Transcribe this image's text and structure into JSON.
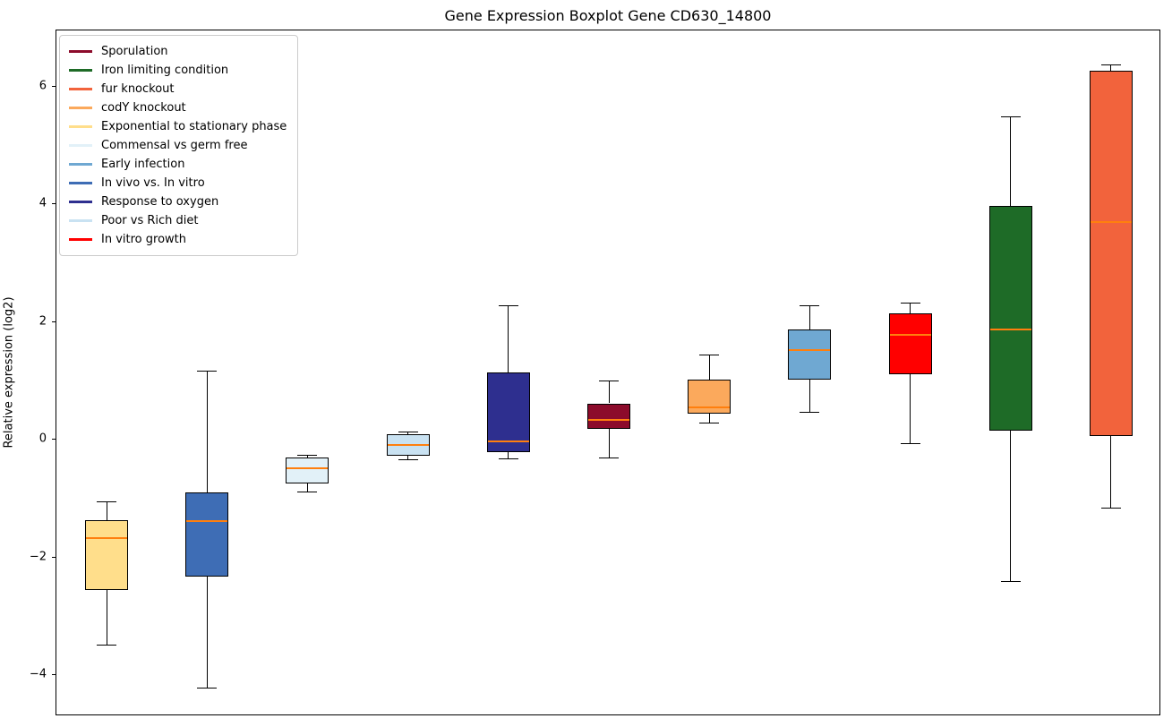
{
  "title": "Gene Expression Boxplot Gene CD630_14800",
  "ylabel": "Relative expression (log2)",
  "chart_data": {
    "type": "boxplot",
    "title": "Gene Expression Boxplot Gene CD630_14800",
    "xlabel": "",
    "ylabel": "Relative expression (log2)",
    "ylim": [
      -4.7,
      6.96
    ],
    "grid": false,
    "legend_position": "upper left",
    "median_color": "#ff7f0e",
    "yticks": [
      {
        "value": 6,
        "label": "6"
      },
      {
        "value": 4,
        "label": "4"
      },
      {
        "value": 2,
        "label": "2"
      },
      {
        "value": 0,
        "label": "0"
      },
      {
        "value": -2,
        "label": "−2"
      },
      {
        "value": -4,
        "label": "−4"
      }
    ],
    "series": [
      {
        "name": "Exponential to stationary phase",
        "color": "#FFDE8B",
        "whislo": -3.48,
        "q1": -2.55,
        "med": -1.67,
        "q3": -1.36,
        "whishi": -1.05
      },
      {
        "name": "In vivo vs. In vitro",
        "color": "#3E6DB5",
        "whislo": -4.22,
        "q1": -2.32,
        "med": -1.38,
        "q3": -0.9,
        "whishi": 1.18
      },
      {
        "name": "Commensal vs germ free",
        "color": "#E2F1F8",
        "whislo": -0.88,
        "q1": -0.74,
        "med": -0.48,
        "q3": -0.3,
        "whishi": -0.26
      },
      {
        "name": "Poor vs Rich diet",
        "color": "#C9E2F2",
        "whislo": -0.33,
        "q1": -0.27,
        "med": -0.09,
        "q3": 0.1,
        "whishi": 0.14
      },
      {
        "name": "Response to oxygen",
        "color": "#2E2F8F",
        "whislo": -0.31,
        "q1": -0.21,
        "med": -0.02,
        "q3": 1.15,
        "whishi": 2.28
      },
      {
        "name": "Sporulation",
        "color": "#8C0B2B",
        "whislo": -0.3,
        "q1": 0.18,
        "med": 0.34,
        "q3": 0.62,
        "whishi": 1.01
      },
      {
        "name": "codY knockout",
        "color": "#FBA95C",
        "whislo": 0.3,
        "q1": 0.45,
        "med": 0.55,
        "q3": 1.02,
        "whishi": 1.45
      },
      {
        "name": "Early infection",
        "color": "#6FA8D2",
        "whislo": 0.48,
        "q1": 1.03,
        "med": 1.52,
        "q3": 1.88,
        "whishi": 2.28
      },
      {
        "name": "In vitro growth",
        "color": "#FF0000",
        "whislo": -0.05,
        "q1": 1.12,
        "med": 1.78,
        "q3": 2.15,
        "whishi": 2.33
      },
      {
        "name": "Iron limiting condition",
        "color": "#1E6B27",
        "whislo": -2.4,
        "q1": 0.15,
        "med": 1.87,
        "q3": 3.97,
        "whishi": 5.5
      },
      {
        "name": "fur knockout",
        "color": "#F2633C",
        "whislo": -1.15,
        "q1": 0.07,
        "med": 3.7,
        "q3": 6.27,
        "whishi": 6.38
      }
    ],
    "legend": [
      {
        "label": "Sporulation",
        "color": "#8C0B2B"
      },
      {
        "label": "Iron limiting condition",
        "color": "#1E6B27"
      },
      {
        "label": "fur knockout",
        "color": "#F2633C"
      },
      {
        "label": "codY knockout",
        "color": "#FBA95C"
      },
      {
        "label": "Exponential to stationary phase",
        "color": "#FFDE8B"
      },
      {
        "label": "Commensal vs germ free",
        "color": "#E2F1F8"
      },
      {
        "label": "Early infection",
        "color": "#6FA8D2"
      },
      {
        "label": "In vivo vs. In vitro",
        "color": "#3E6DB5"
      },
      {
        "label": "Response to oxygen",
        "color": "#2E2F8F"
      },
      {
        "label": "Poor vs Rich diet",
        "color": "#C9E2F2"
      },
      {
        "label": "In vitro growth",
        "color": "#FF0000"
      }
    ]
  }
}
